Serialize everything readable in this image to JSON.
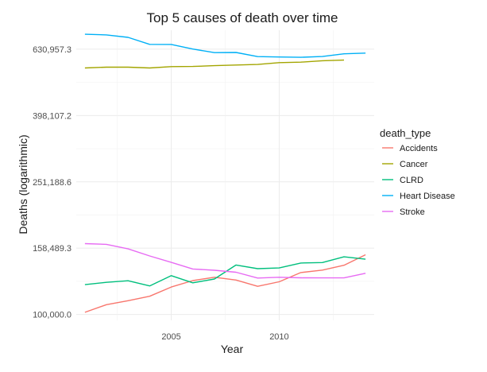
{
  "chart_data": {
    "type": "line",
    "title": "Top 5 causes of death over time",
    "xlabel": "Year",
    "ylabel": "Deaths (logarithmic)",
    "scale_y": "log",
    "xlim": [
      2000.6,
      2014.4
    ],
    "ylim": [
      96000,
      720000
    ],
    "x_ticks": [
      2005,
      2010
    ],
    "x_tick_labels": [
      "2005",
      "2010"
    ],
    "y_ticks": [
      100000,
      158489.3,
      251188.6,
      398107.2,
      630957.3
    ],
    "y_tick_labels": [
      "100,000.0",
      "158,489.3",
      "251,188.6",
      "398,107.2",
      "630,957.3"
    ],
    "legend_title": "death_type",
    "legend_position": "right",
    "series": [
      {
        "name": "Accidents",
        "color": "#F8766D",
        "x": [
          2001,
          2002,
          2003,
          2004,
          2005,
          2006,
          2007,
          2008,
          2009,
          2010,
          2011,
          2012,
          2013,
          2014
        ],
        "values": [
          101500,
          107000,
          110000,
          113500,
          121000,
          126500,
          129500,
          127000,
          121600,
          125500,
          133800,
          136100,
          140700,
          151400
        ]
      },
      {
        "name": "Cancer",
        "color": "#A3A500",
        "x": [
          2001,
          2002,
          2003,
          2004,
          2005,
          2006,
          2007,
          2008,
          2009,
          2010,
          2011,
          2012,
          2013
        ],
        "values": [
          553800,
          557000,
          556900,
          553900,
          559300,
          559900,
          562900,
          565500,
          567600,
          574700,
          576700,
          582600,
          584900
        ]
      },
      {
        "name": "CLRD",
        "color": "#00BF7D",
        "x": [
          2001,
          2002,
          2003,
          2004,
          2005,
          2006,
          2007,
          2008,
          2009,
          2010,
          2011,
          2012,
          2013,
          2014
        ],
        "values": [
          123000,
          125000,
          126400,
          121900,
          130900,
          124600,
          127900,
          141000,
          137400,
          138100,
          142900,
          143400,
          149200,
          146800
        ]
      },
      {
        "name": "Heart Disease",
        "color": "#00B0F6",
        "x": [
          2001,
          2002,
          2003,
          2004,
          2005,
          2006,
          2007,
          2008,
          2009,
          2010,
          2011,
          2012,
          2013,
          2014
        ],
        "values": [
          700100,
          696900,
          685100,
          652500,
          652100,
          631600,
          616100,
          616800,
          599400,
          597700,
          596600,
          599700,
          611100,
          614300
        ]
      },
      {
        "name": "Stroke",
        "color": "#E76BF3",
        "x": [
          2001,
          2002,
          2003,
          2004,
          2005,
          2006,
          2007,
          2008,
          2009,
          2010,
          2011,
          2012,
          2013,
          2014
        ],
        "values": [
          163500,
          162700,
          157700,
          150100,
          143600,
          137100,
          135900,
          134100,
          128800,
          129500,
          129000,
          128900,
          128900,
          133100
        ]
      }
    ]
  }
}
